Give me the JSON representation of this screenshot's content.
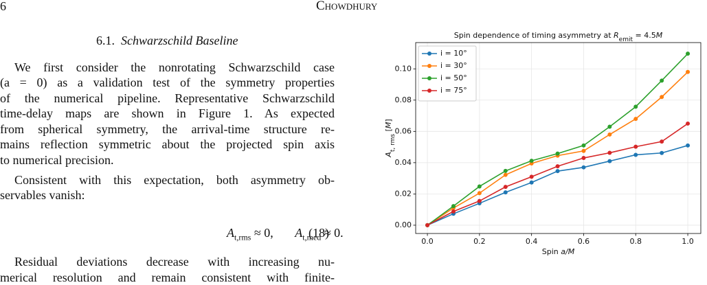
{
  "header": {
    "page": "6",
    "author": "Chowdhury"
  },
  "section": {
    "number": "6.1.",
    "title": "Schwarzschild Baseline"
  },
  "paragraphs": [
    {
      "lines": [
        "We first consider the nonrotating Schwarzschild case",
        "(a = 0) as a validation test of the symmetry properties",
        "of the numerical pipeline. Representative Schwarzschild",
        "time-delay maps are shown in Figure 1. As expected",
        "from spherical symmetry, the arrival-time structure re-",
        "mains reflection symmetric about the projected spin axis",
        "to numerical precision."
      ]
    },
    {
      "lines": [
        "Consistent with this expectation, both asymmetry ob-",
        "servables vanish:"
      ]
    },
    {
      "lines": [
        "Residual deviations decrease with increasing nu-",
        "merical resolution and remain consistent with finite-"
      ]
    }
  ],
  "equation": {
    "terms": [
      [
        {
          "text": "A",
          "style": "it"
        },
        {
          "text": "t,rms",
          "style": "sub"
        },
        {
          "text": " ≈ 0,"
        }
      ],
      [
        {
          "text": "A",
          "style": "it"
        },
        {
          "text": "t,med",
          "style": "sub"
        },
        {
          "text": " ≈ 0."
        }
      ]
    ],
    "number": "(18)"
  },
  "chart_data": {
    "type": "line",
    "title": [
      {
        "text": "Spin dependence of timing asymmetry at "
      },
      {
        "text": "R",
        "style": "it"
      },
      {
        "text": "emit",
        "style": "sub"
      },
      {
        "text": " = 4.5"
      },
      {
        "text": "M",
        "style": "it"
      }
    ],
    "xlabel": [
      {
        "text": "Spin "
      },
      {
        "text": "a/M",
        "style": "it"
      }
    ],
    "ylabel": [
      {
        "text": "A",
        "style": "it"
      },
      {
        "text": "t, rms",
        "style": "sub"
      },
      {
        "text": " ["
      },
      {
        "text": "M",
        "style": "it"
      },
      {
        "text": "]"
      }
    ],
    "x": [
      0,
      0.1,
      0.2,
      0.3,
      0.4,
      0.5,
      0.6,
      0.7,
      0.8,
      0.9,
      1.0
    ],
    "series": [
      {
        "name": "i = 10°",
        "color": "#1f77b4",
        "values": [
          0,
          0.0073,
          0.014,
          0.021,
          0.0273,
          0.0346,
          0.037,
          0.041,
          0.045,
          0.0462,
          0.051
        ]
      },
      {
        "name": "i = 30°",
        "color": "#ff7f0e",
        "values": [
          0,
          0.011,
          0.0205,
          0.0322,
          0.0395,
          0.0445,
          0.0475,
          0.058,
          0.068,
          0.082,
          0.098
        ]
      },
      {
        "name": "i = 50°",
        "color": "#2ca02c",
        "values": [
          0,
          0.0122,
          0.0248,
          0.0347,
          0.0412,
          0.0458,
          0.051,
          0.063,
          0.0758,
          0.0925,
          0.1097
        ]
      },
      {
        "name": "i = 75°",
        "color": "#d62728",
        "values": [
          0,
          0.0088,
          0.0155,
          0.0245,
          0.031,
          0.0377,
          0.043,
          0.0463,
          0.0502,
          0.0535,
          0.065
        ]
      }
    ],
    "xlim": [
      -0.045,
      1.05
    ],
    "ylim": [
      -0.0053,
      0.1168
    ],
    "xticks": [
      {
        "value": 0,
        "label": "0.0"
      },
      {
        "value": 0.2,
        "label": "0.2"
      },
      {
        "value": 0.4,
        "label": "0.4"
      },
      {
        "value": 0.6,
        "label": "0.6"
      },
      {
        "value": 0.8,
        "label": "0.8"
      },
      {
        "value": 1,
        "label": "1.0"
      }
    ],
    "yticks": [
      {
        "value": 0,
        "label": "0.00"
      },
      {
        "value": 0.02,
        "label": "0.02"
      },
      {
        "value": 0.04,
        "label": "0.04"
      },
      {
        "value": 0.06,
        "label": "0.06"
      },
      {
        "value": 0.08,
        "label": "0.08"
      },
      {
        "value": 0.1,
        "label": "0.10"
      }
    ],
    "grid": true,
    "legend": "upper left"
  }
}
